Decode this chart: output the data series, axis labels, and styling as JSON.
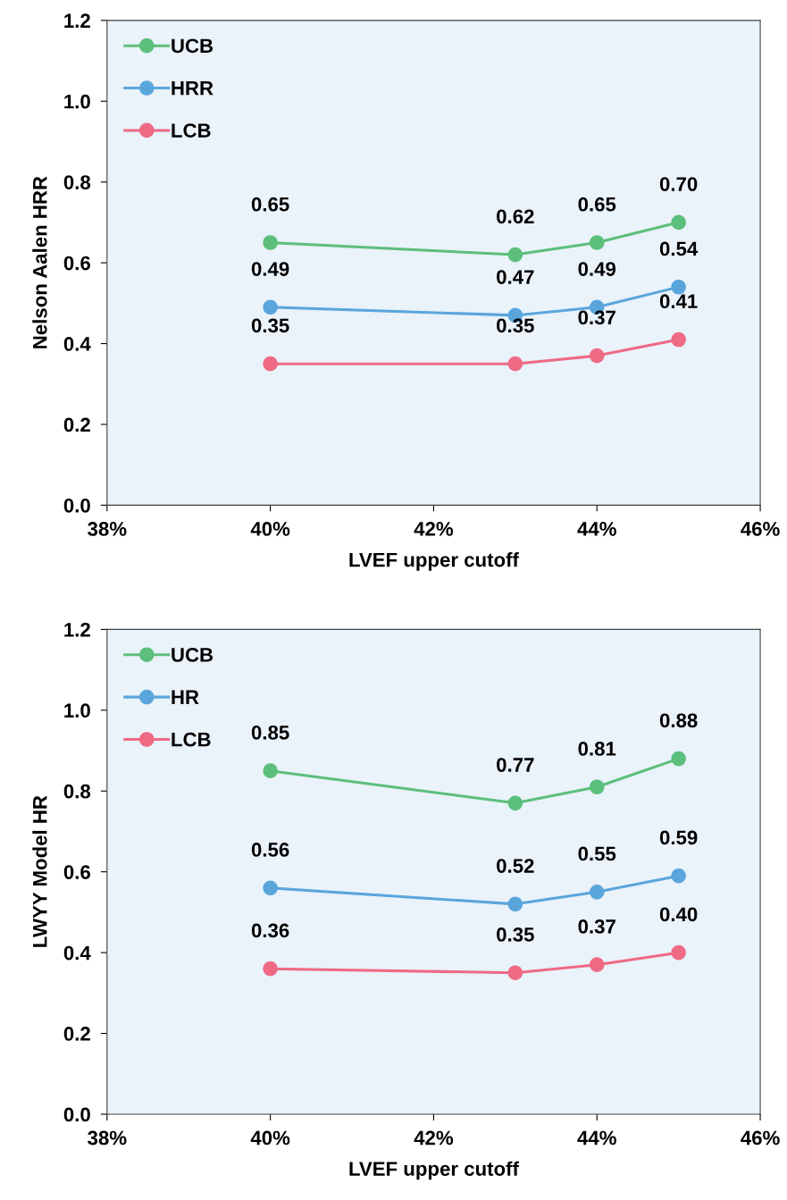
{
  "chart_data": [
    {
      "type": "line",
      "xlabel": "LVEF upper cutoff",
      "ylabel": "Nelson Aalen HRR",
      "x": [
        0.4,
        0.43,
        0.44,
        0.45
      ],
      "series": [
        {
          "name": "UCB",
          "color": "#5cbf7b",
          "values": [
            0.65,
            0.62,
            0.65,
            0.7
          ],
          "value_labels": [
            "0.65",
            "0.62",
            "0.65",
            "0.70"
          ]
        },
        {
          "name": "HRR",
          "color": "#5aa6dc",
          "values": [
            0.49,
            0.47,
            0.49,
            0.54
          ],
          "value_labels": [
            "0.49",
            "0.47",
            "0.49",
            "0.54"
          ]
        },
        {
          "name": "LCB",
          "color": "#ee6a85",
          "values": [
            0.35,
            0.35,
            0.37,
            0.41
          ],
          "value_labels": [
            "0.35",
            "0.35",
            "0.37",
            "0.41"
          ]
        }
      ],
      "xlim": [
        0.38,
        0.46
      ],
      "xticks": [
        {
          "value": 0.38,
          "label": "38%"
        },
        {
          "value": 0.4,
          "label": "40%"
        },
        {
          "value": 0.42,
          "label": "42%"
        },
        {
          "value": 0.44,
          "label": "44%"
        },
        {
          "value": 0.46,
          "label": "46%"
        }
      ],
      "ylim": [
        0,
        1.2
      ],
      "yticks": [
        {
          "value": 0,
          "label": "0.0"
        },
        {
          "value": 0.2,
          "label": "0.2"
        },
        {
          "value": 0.4,
          "label": "0.4"
        },
        {
          "value": 0.6,
          "label": "0.6"
        },
        {
          "value": 0.8,
          "label": "0.8"
        },
        {
          "value": 1.0,
          "label": "1.0"
        },
        {
          "value": 1.2,
          "label": "1.2"
        }
      ],
      "legend": "top left",
      "marker": "circle",
      "line_style": "solid",
      "grid": false
    },
    {
      "type": "line",
      "xlabel": "LVEF upper cutoff",
      "ylabel": "LWYY Model HR",
      "x": [
        0.4,
        0.43,
        0.44,
        0.45
      ],
      "series": [
        {
          "name": "UCB",
          "color": "#5cbf7b",
          "values": [
            0.85,
            0.77,
            0.81,
            0.88
          ],
          "value_labels": [
            "0.85",
            "0.77",
            "0.81",
            "0.88"
          ]
        },
        {
          "name": "HR",
          "color": "#5aa6dc",
          "values": [
            0.56,
            0.52,
            0.55,
            0.59
          ],
          "value_labels": [
            "0.56",
            "0.52",
            "0.55",
            "0.59"
          ]
        },
        {
          "name": "LCB",
          "color": "#ee6a85",
          "values": [
            0.36,
            0.35,
            0.37,
            0.4
          ],
          "value_labels": [
            "0.36",
            "0.35",
            "0.37",
            "0.40"
          ]
        }
      ],
      "xlim": [
        0.38,
        0.46
      ],
      "xticks": [
        {
          "value": 0.38,
          "label": "38%"
        },
        {
          "value": 0.4,
          "label": "40%"
        },
        {
          "value": 0.42,
          "label": "42%"
        },
        {
          "value": 0.44,
          "label": "44%"
        },
        {
          "value": 0.46,
          "label": "46%"
        }
      ],
      "ylim": [
        0,
        1.2
      ],
      "yticks": [
        {
          "value": 0,
          "label": "0.0"
        },
        {
          "value": 0.2,
          "label": "0.2"
        },
        {
          "value": 0.4,
          "label": "0.4"
        },
        {
          "value": 0.6,
          "label": "0.6"
        },
        {
          "value": 0.8,
          "label": "0.8"
        },
        {
          "value": 1.0,
          "label": "1.0"
        },
        {
          "value": 1.2,
          "label": "1.2"
        }
      ],
      "legend": "top left",
      "marker": "circle",
      "line_style": "solid",
      "grid": false
    }
  ]
}
